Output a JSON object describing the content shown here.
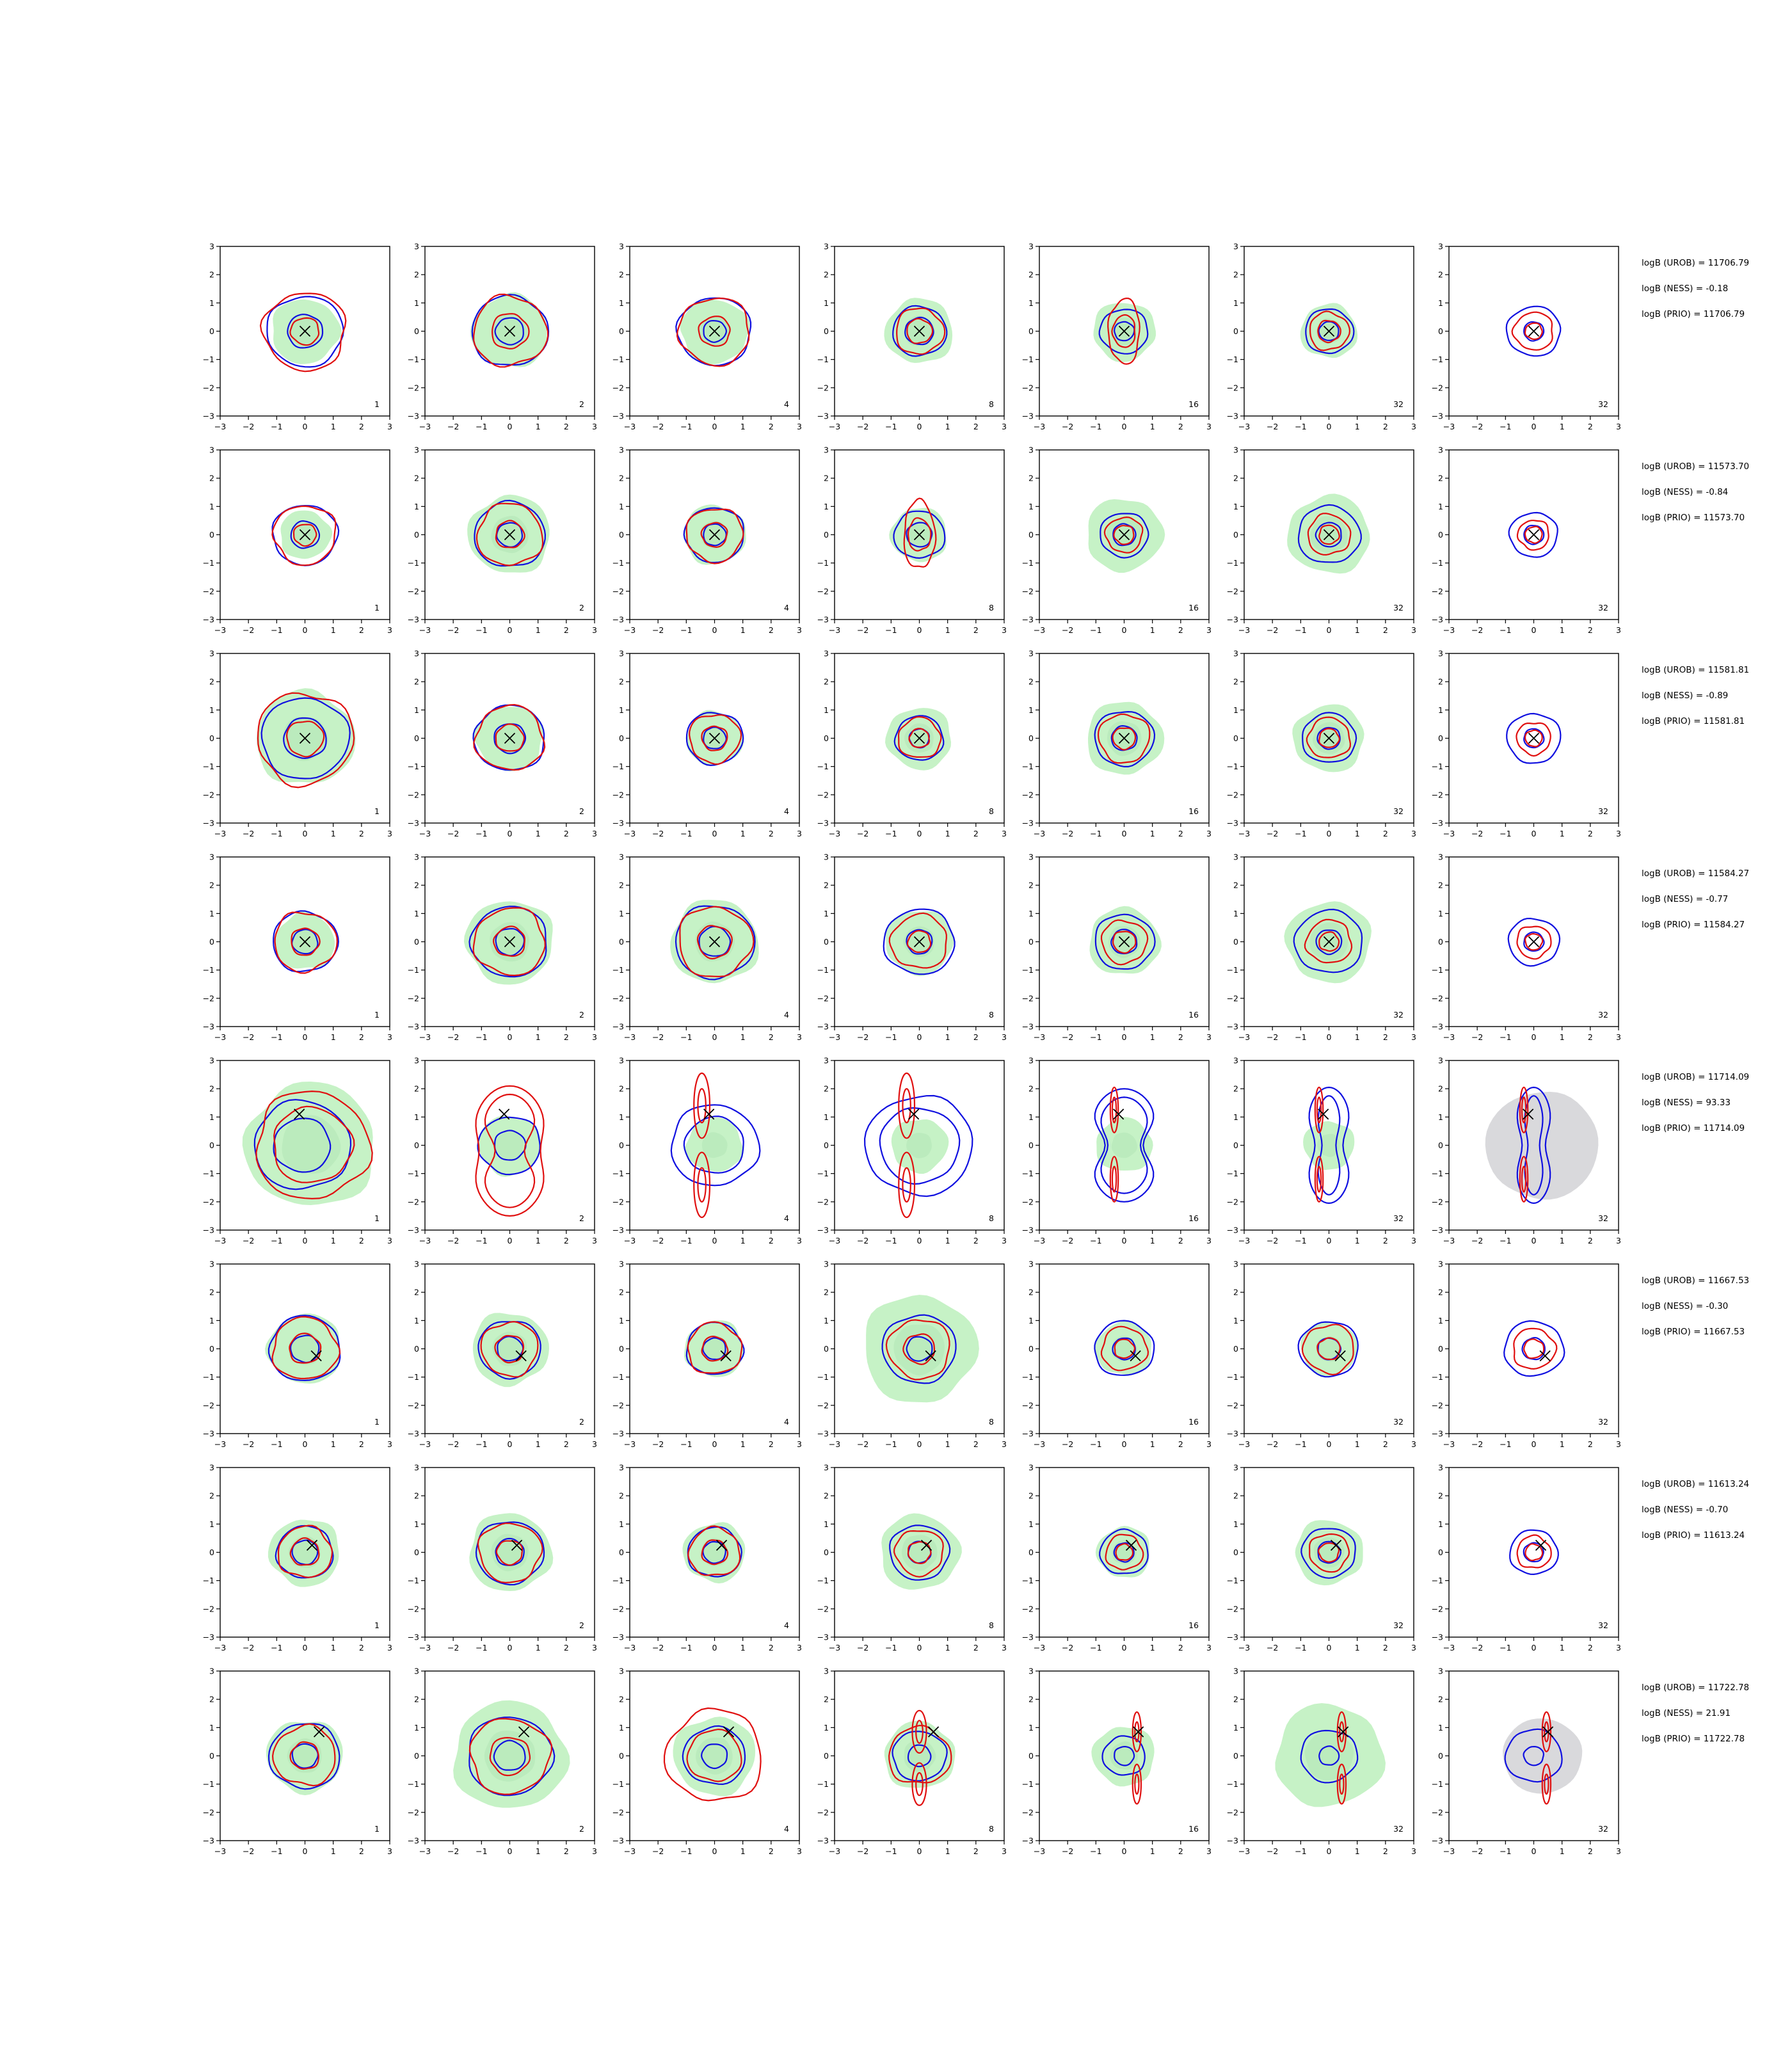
{
  "chart_data": {
    "type": "contour-grid",
    "description_axes": {
      "xlim": [
        -3,
        3
      ],
      "ylim": [
        -3,
        3
      ],
      "ticks": [
        -3,
        -2,
        -1,
        0,
        1,
        2,
        3
      ],
      "tick_labels": [
        "−3",
        "−2",
        "−1",
        "0",
        "1",
        "2",
        "3"
      ]
    },
    "colors": {
      "blue_contour": "#1010e0",
      "red_contour": "#e01010",
      "green_fill": "#c6f2c6",
      "grey_fill": "#d9d9dc",
      "marker": "#000000"
    },
    "column_numbers": [
      "1",
      "2",
      "4",
      "8",
      "16",
      "32",
      "32"
    ],
    "rows": [
      {
        "marker": [
          0,
          0
        ],
        "stats": [
          "logB (UROB) = 11706.79",
          "logB (NESS) = -0.18",
          "logB (PRIO) = 11706.79"
        ],
        "panels": [
          {
            "green": 1.2,
            "grey": 0,
            "blue": [
              1.35,
              0.62
            ],
            "red": [
              1.45,
              0.5
            ]
          },
          {
            "green": 1.35,
            "grey": 0,
            "blue": [
              1.35,
              0.5
            ],
            "red": [
              1.3,
              0.65
            ]
          },
          {
            "green": 1.2,
            "grey": 0,
            "blue": [
              1.3,
              0.4
            ],
            "red": [
              1.25,
              0.55
            ]
          },
          {
            "green": 1.2,
            "grey": 0,
            "blue": [
              0.95,
              0.5
            ],
            "red": [
              0.85,
              0.45
            ]
          },
          {
            "green": 1.1,
            "grey": 0,
            "blue": [
              0.85,
              0.35
            ],
            "red": [
              0.55,
              0.4
            ],
            "red_stretch": 2.2
          },
          {
            "green": 1.0,
            "grey": 0,
            "blue": [
              0.85,
              0.35
            ],
            "red": [
              0.7,
              0.4
            ]
          },
          {
            "green": 0,
            "grey": 0,
            "blue": [
              0.95,
              0.35
            ],
            "red": [
              0.7,
              0.3
            ]
          }
        ]
      },
      {
        "marker": [
          0,
          0
        ],
        "stats": [
          "logB (UROB) = 11573.70",
          "logB (NESS) = -0.84",
          "logB (PRIO) = 11573.70"
        ],
        "panels": [
          {
            "green": 0.9,
            "grey": 0,
            "blue": [
              1.15,
              0.5
            ],
            "red": [
              1.1,
              0.4
            ]
          },
          {
            "green": 1.45,
            "grey": 0,
            "blue": [
              1.25,
              0.45
            ],
            "red": [
              1.15,
              0.5
            ]
          },
          {
            "green": 1.1,
            "grey": 0,
            "blue": [
              1.05,
              0.4
            ],
            "red": [
              1.0,
              0.45
            ]
          },
          {
            "green": 1.0,
            "grey": 0,
            "blue": [
              0.9,
              0.45
            ],
            "red": [
              0.55,
              0.4
            ],
            "red_stretch": 2.3
          },
          {
            "green": 1.35,
            "grey": 0,
            "blue": [
              0.85,
              0.4
            ],
            "red": [
              0.65,
              0.35
            ]
          },
          {
            "green": 1.45,
            "grey": 0,
            "blue": [
              1.1,
              0.45
            ],
            "red": [
              0.75,
              0.35
            ]
          },
          {
            "green": 0,
            "grey": 0,
            "blue": [
              0.85,
              0.35
            ],
            "red": [
              0.55,
              0.3
            ]
          }
        ]
      },
      {
        "marker": [
          0,
          0
        ],
        "stats": [
          "logB (UROB) = 11581.81",
          "logB (NESS) = -0.89",
          "logB (PRIO) = 11581.81"
        ],
        "panels": [
          {
            "green": 1.75,
            "grey": 0,
            "blue": [
              1.55,
              0.75
            ],
            "red": [
              1.7,
              0.65
            ]
          },
          {
            "green": 1.2,
            "grey": 0,
            "blue": [
              1.25,
              0.55
            ],
            "red": [
              1.2,
              0.5
            ]
          },
          {
            "green": 1.0,
            "grey": 0,
            "blue": [
              1.0,
              0.4
            ],
            "red": [
              0.9,
              0.45
            ]
          },
          {
            "green": 1.15,
            "grey": 0,
            "blue": [
              0.85,
              0.35
            ],
            "red": [
              0.75,
              0.35
            ]
          },
          {
            "green": 1.35,
            "grey": 0,
            "blue": [
              1.05,
              0.45
            ],
            "red": [
              0.9,
              0.4
            ]
          },
          {
            "green": 1.25,
            "grey": 0,
            "blue": [
              0.95,
              0.4
            ],
            "red": [
              0.75,
              0.35
            ]
          },
          {
            "green": 0,
            "grey": 0,
            "blue": [
              0.95,
              0.35
            ],
            "red": [
              0.6,
              0.3
            ]
          }
        ]
      },
      {
        "marker": [
          0,
          0
        ],
        "stats": [
          "logB (UROB) = 11584.27",
          "logB (NESS) = -0.77",
          "logB (PRIO) = 11584.27"
        ],
        "panels": [
          {
            "green": 1.05,
            "grey": 0,
            "blue": [
              1.15,
              0.45
            ],
            "red": [
              1.1,
              0.5
            ]
          },
          {
            "green": 1.55,
            "grey": 0,
            "blue": [
              1.35,
              0.5
            ],
            "red": [
              1.25,
              0.55
            ]
          },
          {
            "green": 1.55,
            "grey": 0,
            "blue": [
              1.4,
              0.55
            ],
            "red": [
              1.3,
              0.6
            ]
          },
          {
            "green": 1.2,
            "grey": 0,
            "blue": [
              1.25,
              0.45
            ],
            "red": [
              1.0,
              0.4
            ]
          },
          {
            "green": 1.25,
            "grey": 0,
            "blue": [
              1.05,
              0.45
            ],
            "red": [
              0.8,
              0.4
            ]
          },
          {
            "green": 1.5,
            "grey": 0,
            "blue": [
              1.2,
              0.45
            ],
            "red": [
              0.8,
              0.35
            ]
          },
          {
            "green": 0,
            "grey": 0,
            "blue": [
              0.9,
              0.35
            ],
            "red": [
              0.6,
              0.3
            ]
          }
        ]
      },
      {
        "marker": [
          -0.2,
          1.1
        ],
        "stats": [
          "logB (UROB) = 11714.09",
          "logB (NESS) = 93.33",
          "logB (PRIO) = 11714.09"
        ],
        "panels": [
          {
            "green": 2.3,
            "grey": 0,
            "blue": [
              1.7,
              1.0
            ],
            "red": [
              2.0,
              1.4
            ],
            "special": "wide"
          },
          {
            "green": 1.1,
            "grey": 0,
            "blue": [
              1.1,
              0.55
            ],
            "red": [
              0,
              0
            ],
            "special": "red_peanut"
          },
          {
            "green": 1.0,
            "grey": 0,
            "blue": [
              1.55,
              1.05
            ],
            "red": [
              0,
              0
            ],
            "special": "red_twin_tall"
          },
          {
            "green": 1.0,
            "grey": 0,
            "blue": [
              1.9,
              1.4
            ],
            "red": [
              0,
              0
            ],
            "special": "red_twin_tall"
          },
          {
            "green": 1.0,
            "grey": 0,
            "blue": [
              0,
              0
            ],
            "red": [
              0,
              0
            ],
            "special": "blue_peanut"
          },
          {
            "green": 0.9,
            "grey": 0,
            "blue": [
              0,
              0
            ],
            "red": [
              0,
              0
            ],
            "special": "blue_capsule"
          },
          {
            "green": 0,
            "grey": 2.0,
            "blue": [
              0,
              0
            ],
            "red": [
              0,
              0
            ],
            "special": "blue_capsule_small"
          }
        ]
      },
      {
        "marker": [
          0.4,
          -0.25
        ],
        "stats": [
          "logB (UROB) = 11667.53",
          "logB (NESS) = -0.30",
          "logB (PRIO) = 11667.53"
        ],
        "panels": [
          {
            "green": 1.3,
            "grey": 0,
            "blue": [
              1.25,
              0.5
            ],
            "red": [
              1.15,
              0.55
            ]
          },
          {
            "green": 1.35,
            "grey": 0,
            "blue": [
              1.1,
              0.45
            ],
            "red": [
              1.0,
              0.5
            ]
          },
          {
            "green": 1.05,
            "grey": 0,
            "blue": [
              1.0,
              0.4
            ],
            "red": [
              0.95,
              0.45
            ]
          },
          {
            "green": 2.0,
            "grey": 0,
            "blue": [
              1.3,
              0.45
            ],
            "red": [
              1.1,
              0.55
            ]
          },
          {
            "green": 1.0,
            "grey": 0,
            "blue": [
              1.05,
              0.4
            ],
            "red": [
              0.8,
              0.35
            ]
          },
          {
            "green": 1.0,
            "grey": 0,
            "blue": [
              1.05,
              0.4
            ],
            "red": [
              0.9,
              0.4
            ]
          },
          {
            "green": 0,
            "grey": 0,
            "blue": [
              1.05,
              0.4
            ],
            "red": [
              0.75,
              0.35
            ]
          }
        ]
      },
      {
        "marker": [
          0.25,
          0.25
        ],
        "stats": [
          "logB (UROB) = 11613.24",
          "logB (NESS) = -0.70",
          "logB (PRIO) = 11613.24"
        ],
        "panels": [
          {
            "green": 1.25,
            "grey": 0,
            "blue": [
              1.0,
              0.45
            ],
            "red": [
              0.95,
              0.5
            ]
          },
          {
            "green": 1.45,
            "grey": 0,
            "blue": [
              1.2,
              0.5
            ],
            "red": [
              1.1,
              0.45
            ]
          },
          {
            "green": 1.1,
            "grey": 0,
            "blue": [
              0.95,
              0.4
            ],
            "red": [
              0.9,
              0.45
            ]
          },
          {
            "green": 1.4,
            "grey": 0,
            "blue": [
              1.05,
              0.4
            ],
            "red": [
              0.85,
              0.4
            ]
          },
          {
            "green": 0.95,
            "grey": 0,
            "blue": [
              0.85,
              0.35
            ],
            "red": [
              0.65,
              0.3
            ]
          },
          {
            "green": 1.2,
            "grey": 0,
            "blue": [
              0.95,
              0.4
            ],
            "red": [
              0.7,
              0.35
            ]
          },
          {
            "green": 0,
            "grey": 0,
            "blue": [
              0.85,
              0.35
            ],
            "red": [
              0.6,
              0.3
            ]
          }
        ]
      },
      {
        "marker": [
          0.5,
          0.85
        ],
        "stats": [
          "logB (UROB) = 11722.78",
          "logB (NESS) = 21.91",
          "logB (PRIO) = 11722.78"
        ],
        "panels": [
          {
            "green": 1.35,
            "grey": 0,
            "blue": [
              1.25,
              0.45
            ],
            "red": [
              1.1,
              0.5
            ]
          },
          {
            "green": 2.0,
            "grey": 0,
            "blue": [
              1.5,
              0.55
            ],
            "red": [
              1.4,
              0.7
            ]
          },
          {
            "green": 1.45,
            "grey": 0,
            "blue": [
              1.1,
              0.45
            ],
            "red": [
              1.7,
              0.95
            ]
          },
          {
            "green": 1.25,
            "grey": 0,
            "blue": [
              0.95,
              0.4
            ],
            "red": [
              0,
              0
            ],
            "special": "red_twin_small"
          },
          {
            "green": 1.1,
            "grey": 0,
            "blue": [
              0.75,
              0.35
            ],
            "red": [
              0,
              0
            ],
            "special": "red_twin_right"
          },
          {
            "green": 1.9,
            "grey": 0,
            "blue": [
              1.0,
              0.35
            ],
            "red": [
              0,
              0
            ],
            "special": "red_twin_right"
          },
          {
            "green": 0,
            "grey": 1.4,
            "blue": [
              1.0,
              0.35
            ],
            "red": [
              0,
              0
            ],
            "special": "red_twin_right"
          }
        ]
      }
    ]
  }
}
